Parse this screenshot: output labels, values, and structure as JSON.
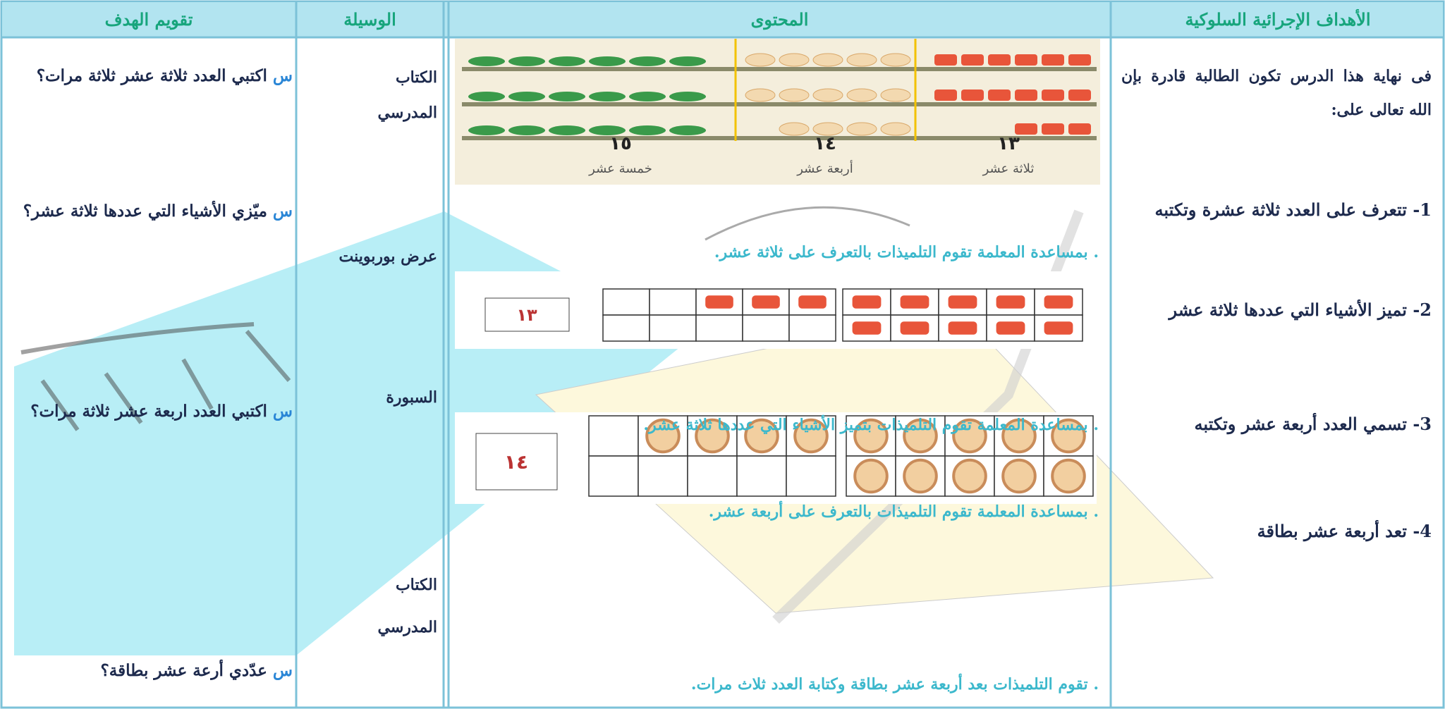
{
  "header": {
    "objectives": "الأهداف الإجرائية السلوكية",
    "content": "المحتوى",
    "tools": "الوسيلة",
    "evaluation": "تقويم الهدف"
  },
  "objectives": {
    "intro": "فى نهاية هذا الدرس تكون الطالبة قادرة بإن الله تعالى على:",
    "items": [
      "1- تتعرف على العدد ثلاثة عشرة وتكتبه",
      "2- تميز الأشياء التي عددها ثلاثة عشر",
      "3- تسمي العدد أربعة عشر وتكتبه",
      "4- تعد أربعة عشر بطاقة"
    ]
  },
  "content": {
    "figure_labels": [
      {
        "number": "١٣",
        "word": "ثلاثة عشر"
      },
      {
        "number": "١٤",
        "word": "أربعة عشر"
      },
      {
        "number": "١٥",
        "word": "خمسة عشر"
      }
    ],
    "cards": [
      "١٣",
      "١٤"
    ],
    "sentences": [
      ". بمساعدة المعلمة تقوم التلميذات بالتعرف على ثلاثة عشر.",
      ". بمساعدة المعلمة تقوم التلميذات بتميز الأشياء التي عددها ثلاثة عشر.",
      ". بمساعدة المعلمة تقوم التلميذات بالتعرف على أربعة عشر.",
      ". تقوم التلميذات بعد أربعة عشر بطاقة وكتابة العدد ثلاث مرات."
    ]
  },
  "tools": [
    "الكتاب المدرسي",
    "عرض بوربوينت",
    "السبورة",
    "الكتاب المدرسي"
  ],
  "evaluation": [
    {
      "marker": "س",
      "text": "اكتبي العدد ثلاثة عشر ثلاثة مرات؟"
    },
    {
      "marker": "س",
      "text": "ميّزي الأشياء التي عددها ثلاثة عشر؟"
    },
    {
      "marker": "س",
      "text": "اكتبي العدد اربعة عشر ثلاثة مرات؟"
    },
    {
      "marker": "س",
      "text": "عدّدي أرعة عشر بطاقة؟"
    }
  ]
}
